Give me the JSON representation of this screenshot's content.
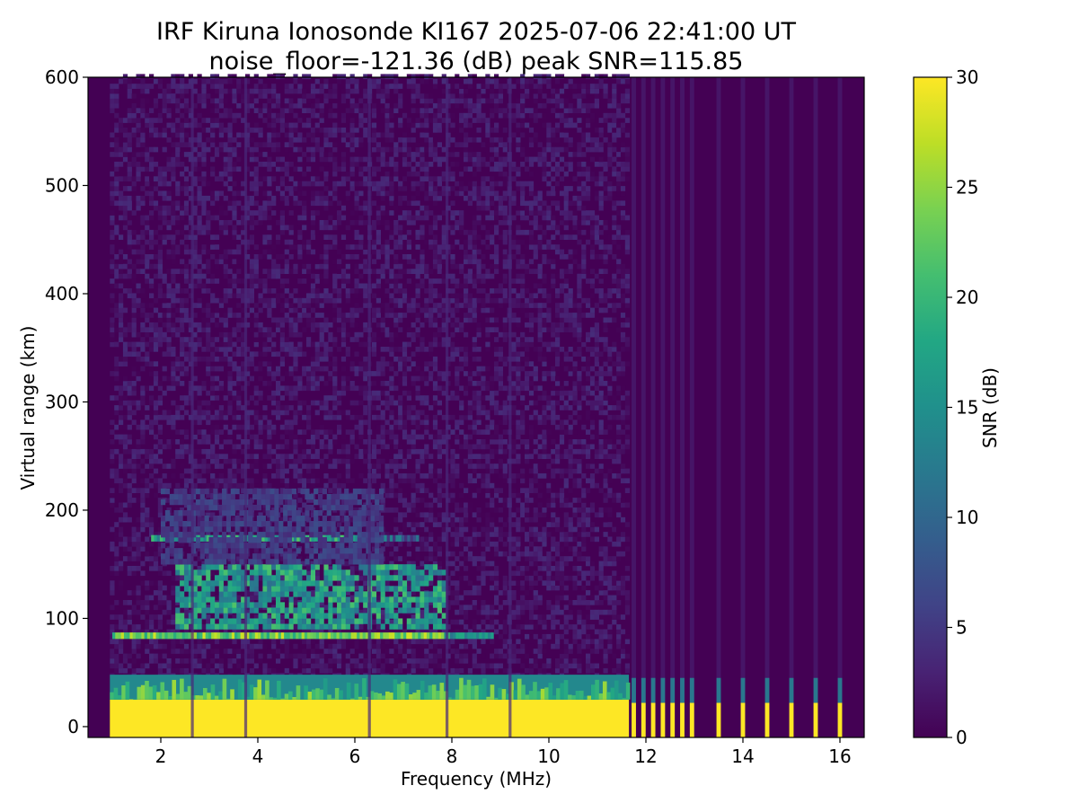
{
  "chart_data": {
    "type": "heatmap",
    "title": "IRF Kiruna Ionosonde KI167 2025-07-06 22:41:00  UT",
    "subtitle": "noise_floor=-121.36 (dB) peak SNR=115.85",
    "xlabel": "Frequency (MHz)",
    "ylabel": "Virtual range (km)",
    "xlim": [
      0.5,
      16.5
    ],
    "ylim": [
      -10,
      600
    ],
    "x_ticks": [
      2,
      4,
      6,
      8,
      10,
      12,
      14,
      16
    ],
    "y_ticks": [
      0,
      100,
      200,
      300,
      400,
      500,
      600
    ],
    "colorbar": {
      "label": "SNR (dB)",
      "range": [
        0,
        30
      ],
      "ticks": [
        0,
        5,
        10,
        15,
        20,
        25,
        30
      ],
      "colormap": "viridis"
    },
    "data_frequency_range_mhz": [
      0.95,
      16.45
    ],
    "features": [
      {
        "kind": "ground-clutter",
        "x_range": [
          0.95,
          11.65
        ],
        "y_range": [
          -10,
          25
        ],
        "snr": 30
      },
      {
        "kind": "clutter-edge",
        "x_range": [
          0.95,
          11.65
        ],
        "y_range": [
          25,
          48
        ],
        "snr": 14
      },
      {
        "kind": "E-layer-trace",
        "x_range": [
          1.0,
          8.8
        ],
        "y": 84,
        "snr": 28
      },
      {
        "kind": "Es-patch",
        "x_range": [
          2.3,
          7.8
        ],
        "y_range": [
          90,
          150
        ],
        "snr": 18
      },
      {
        "kind": "Es-trace",
        "x_range": [
          1.8,
          7.3
        ],
        "y": 174,
        "snr": 22
      },
      {
        "kind": "weak-echo-cloud",
        "x_range": [
          2.0,
          6.5
        ],
        "y_range": [
          150,
          220
        ],
        "snr": 6
      }
    ],
    "interference_columns_mhz": [
      2.65,
      3.75,
      6.3,
      7.9,
      9.2
    ],
    "stripe_bursts_mhz": [
      11.75,
      11.95,
      12.15,
      12.35,
      12.55,
      12.75,
      12.95,
      13.5,
      14.0,
      14.5,
      15.0,
      15.5,
      16.0
    ]
  }
}
